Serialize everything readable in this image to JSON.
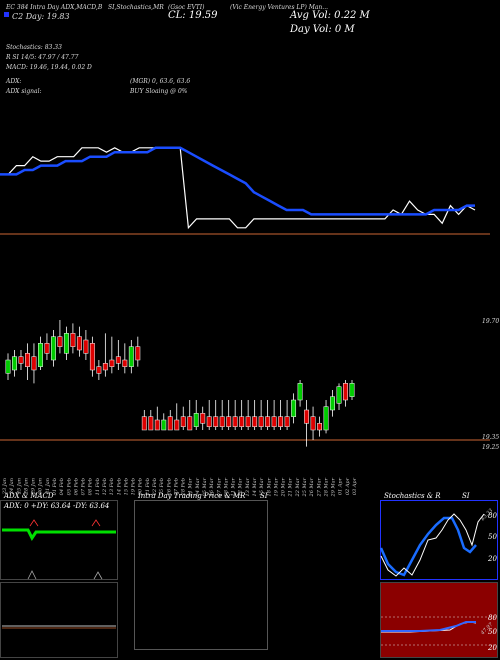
{
  "header": {
    "line1": "EC 384 Intra Day ADX,MACD,B",
    "line1b": "SI,Stochastics,MR",
    "line1c": "(Gsoc EVTI)",
    "line1d": "(Vic Energy Ventures LP) Man...",
    "line2": "C2 Day: 19.83",
    "close": "CL: 19.59",
    "avg_vol": "Avg Vol: 0.22 M",
    "day_vol": "Day Vol: 0   M"
  },
  "indicators": {
    "stochastics": "Stochastics: 83.33",
    "rsi": "R      SI 14/5: 47.97 / 47.77",
    "macd": "MACD: 19.46, 19.44, 0.02  D",
    "adx": "ADX:",
    "adx_vals": "(MGR) 0, 63.6, 63.6",
    "adx_signal": "ADX  signal:",
    "signal": "BUY Sloaing @ 0%"
  },
  "price_labels": {
    "top": "19.70",
    "low1": "19.35",
    "low2": "19.25"
  },
  "chart_data": {
    "type": "line",
    "description_series": [
      {
        "name": "price",
        "color": "#ffffff",
        "values": [
          19.82,
          19.82,
          19.84,
          19.84,
          19.86,
          19.85,
          19.85,
          19.86,
          19.86,
          19.86,
          19.88,
          19.88,
          19.88,
          19.87,
          19.88,
          19.87,
          19.87,
          19.88,
          19.88,
          19.88,
          19.88,
          19.88,
          19.88,
          19.7,
          19.72,
          19.72,
          19.72,
          19.72,
          19.72,
          19.7,
          19.7,
          19.72,
          19.72,
          19.72,
          19.72,
          19.72,
          19.72,
          19.72,
          19.72,
          19.72,
          19.72,
          19.72,
          19.72,
          19.72,
          19.72,
          19.72,
          19.72,
          19.72,
          19.74,
          19.73,
          19.76,
          19.74,
          19.73,
          19.73,
          19.71,
          19.75,
          19.73,
          19.75,
          19.74
        ]
      },
      {
        "name": "moving-average",
        "color": "#1a4dff",
        "values": [
          19.82,
          19.82,
          19.82,
          19.83,
          19.83,
          19.84,
          19.84,
          19.84,
          19.85,
          19.85,
          19.85,
          19.86,
          19.86,
          19.86,
          19.87,
          19.87,
          19.87,
          19.87,
          19.87,
          19.88,
          19.88,
          19.88,
          19.88,
          19.87,
          19.86,
          19.85,
          19.84,
          19.83,
          19.82,
          19.81,
          19.8,
          19.78,
          19.77,
          19.76,
          19.75,
          19.74,
          19.74,
          19.74,
          19.73,
          19.73,
          19.73,
          19.73,
          19.73,
          19.73,
          19.73,
          19.73,
          19.73,
          19.73,
          19.73,
          19.73,
          19.73,
          19.73,
          19.73,
          19.74,
          19.74,
          19.74,
          19.74,
          19.75,
          19.75
        ]
      }
    ],
    "x_labels": [
      "23 Jan",
      "24 Jan",
      "25 Jan",
      "28 Jan",
      "29 Jan",
      "30 Jan",
      "31 Jan",
      "01 Feb",
      "04 Feb",
      "05 Feb",
      "06 Feb",
      "07 Feb",
      "08 Feb",
      "11 Feb",
      "12 Feb",
      "13 Feb",
      "14 Feb",
      "15 Feb",
      "19 Feb",
      "20 Feb",
      "21 Feb",
      "22 Feb",
      "25 Feb",
      "26 Feb",
      "27 Feb",
      "28 Feb",
      "01 Mar",
      "04 Mar",
      "05 Mar",
      "06 Mar",
      "07 Mar",
      "08 Mar",
      "11 Mar",
      "12 Mar",
      "13 Mar",
      "14 Mar",
      "15 Mar",
      "18 Mar",
      "19 Mar",
      "20 Mar",
      "21 Mar",
      "22 Mar",
      "25 Mar",
      "26 Mar",
      "27 Mar",
      "28 Mar",
      "29 Mar",
      "01 Apr",
      "02 Apr",
      "03 Apr"
    ],
    "candles": [
      {
        "dir": "g",
        "o": 19.46,
        "c": 19.5,
        "h": 19.52,
        "l": 19.44
      },
      {
        "dir": "g",
        "o": 19.47,
        "c": 19.51,
        "h": 19.53,
        "l": 19.45
      },
      {
        "dir": "r",
        "o": 19.51,
        "c": 19.49,
        "h": 19.53,
        "l": 19.47
      },
      {
        "dir": "r",
        "o": 19.52,
        "c": 19.48,
        "h": 19.55,
        "l": 19.44
      },
      {
        "dir": "r",
        "o": 19.51,
        "c": 19.47,
        "h": 19.55,
        "l": 19.43
      },
      {
        "dir": "g",
        "o": 19.48,
        "c": 19.55,
        "h": 19.57,
        "l": 19.47
      },
      {
        "dir": "r",
        "o": 19.55,
        "c": 19.52,
        "h": 19.58,
        "l": 19.5
      },
      {
        "dir": "g",
        "o": 19.5,
        "c": 19.57,
        "h": 19.59,
        "l": 19.48
      },
      {
        "dir": "r",
        "o": 19.57,
        "c": 19.54,
        "h": 19.62,
        "l": 19.52
      },
      {
        "dir": "g",
        "o": 19.52,
        "c": 19.58,
        "h": 19.6,
        "l": 19.5
      },
      {
        "dir": "r",
        "o": 19.58,
        "c": 19.54,
        "h": 19.61,
        "l": 19.52
      },
      {
        "dir": "r",
        "o": 19.57,
        "c": 19.53,
        "h": 19.6,
        "l": 19.51
      },
      {
        "dir": "r",
        "o": 19.56,
        "c": 19.52,
        "h": 19.59,
        "l": 19.5
      },
      {
        "dir": "r",
        "o": 19.55,
        "c": 19.47,
        "h": 19.57,
        "l": 19.45
      },
      {
        "dir": "r",
        "o": 19.48,
        "c": 19.46,
        "h": 19.5,
        "l": 19.44
      },
      {
        "dir": "r",
        "o": 19.49,
        "c": 19.47,
        "h": 19.58,
        "l": 19.45
      },
      {
        "dir": "r",
        "o": 19.5,
        "c": 19.48,
        "h": 19.57,
        "l": 19.46
      },
      {
        "dir": "r",
        "o": 19.51,
        "c": 19.49,
        "h": 19.56,
        "l": 19.47
      },
      {
        "dir": "r",
        "o": 19.5,
        "c": 19.48,
        "h": 19.55,
        "l": 19.46
      },
      {
        "dir": "g",
        "o": 19.48,
        "c": 19.54,
        "h": 19.56,
        "l": 19.46
      },
      {
        "dir": "r",
        "o": 19.54,
        "c": 19.5,
        "h": 19.57,
        "l": 19.48
      },
      {
        "dir": "r",
        "o": 19.33,
        "c": 19.29,
        "h": 19.35,
        "l": 19.29
      },
      {
        "dir": "r",
        "o": 19.33,
        "c": 19.29,
        "h": 19.35,
        "l": 19.29
      },
      {
        "dir": "r",
        "o": 19.32,
        "c": 19.29,
        "h": 19.36,
        "l": 19.29
      },
      {
        "dir": "g",
        "o": 19.29,
        "c": 19.32,
        "h": 19.34,
        "l": 19.29
      },
      {
        "dir": "r",
        "o": 19.33,
        "c": 19.29,
        "h": 19.35,
        "l": 19.29
      },
      {
        "dir": "r",
        "o": 19.32,
        "c": 19.29,
        "h": 19.37,
        "l": 19.29
      },
      {
        "dir": "r",
        "o": 19.33,
        "c": 19.3,
        "h": 19.36,
        "l": 19.29
      },
      {
        "dir": "r",
        "o": 19.33,
        "c": 19.29,
        "h": 19.38,
        "l": 19.29
      },
      {
        "dir": "g",
        "o": 19.3,
        "c": 19.34,
        "h": 19.38,
        "l": 19.29
      },
      {
        "dir": "r",
        "o": 19.34,
        "c": 19.31,
        "h": 19.36,
        "l": 19.29
      },
      {
        "dir": "r",
        "o": 19.33,
        "c": 19.3,
        "h": 19.38,
        "l": 19.29
      },
      {
        "dir": "r",
        "o": 19.33,
        "c": 19.3,
        "h": 19.38,
        "l": 19.29
      },
      {
        "dir": "r",
        "o": 19.33,
        "c": 19.3,
        "h": 19.38,
        "l": 19.29
      },
      {
        "dir": "r",
        "o": 19.33,
        "c": 19.3,
        "h": 19.38,
        "l": 19.29
      },
      {
        "dir": "r",
        "o": 19.33,
        "c": 19.3,
        "h": 19.38,
        "l": 19.29
      },
      {
        "dir": "r",
        "o": 19.33,
        "c": 19.3,
        "h": 19.38,
        "l": 19.29
      },
      {
        "dir": "r",
        "o": 19.33,
        "c": 19.3,
        "h": 19.38,
        "l": 19.29
      },
      {
        "dir": "r",
        "o": 19.33,
        "c": 19.3,
        "h": 19.38,
        "l": 19.29
      },
      {
        "dir": "r",
        "o": 19.33,
        "c": 19.3,
        "h": 19.38,
        "l": 19.29
      },
      {
        "dir": "r",
        "o": 19.33,
        "c": 19.3,
        "h": 19.38,
        "l": 19.29
      },
      {
        "dir": "r",
        "o": 19.33,
        "c": 19.3,
        "h": 19.38,
        "l": 19.29
      },
      {
        "dir": "r",
        "o": 19.33,
        "c": 19.3,
        "h": 19.38,
        "l": 19.29
      },
      {
        "dir": "r",
        "o": 19.33,
        "c": 19.3,
        "h": 19.38,
        "l": 19.29
      },
      {
        "dir": "g",
        "o": 19.33,
        "c": 19.38,
        "h": 19.4,
        "l": 19.31
      },
      {
        "dir": "g",
        "o": 19.38,
        "c": 19.43,
        "h": 19.44,
        "l": 19.36
      },
      {
        "dir": "r",
        "o": 19.35,
        "c": 19.31,
        "h": 19.38,
        "l": 19.24
      },
      {
        "dir": "r",
        "o": 19.33,
        "c": 19.29,
        "h": 19.36,
        "l": 19.26
      },
      {
        "dir": "r",
        "o": 19.31,
        "c": 19.29,
        "h": 19.33,
        "l": 19.27
      },
      {
        "dir": "g",
        "o": 19.29,
        "c": 19.36,
        "h": 19.38,
        "l": 19.28
      },
      {
        "dir": "g",
        "o": 19.35,
        "c": 19.39,
        "h": 19.41,
        "l": 19.33
      },
      {
        "dir": "g",
        "o": 19.37,
        "c": 19.42,
        "h": 19.43,
        "l": 19.35
      },
      {
        "dir": "r",
        "o": 19.43,
        "c": 19.38,
        "h": 19.44,
        "l": 19.36
      },
      {
        "dir": "g",
        "o": 19.39,
        "c": 19.43,
        "h": 19.44,
        "l": 19.38
      }
    ]
  },
  "panels": {
    "adx_title": "ADX  & MACD",
    "adx_readout": "ADX: 0  +DY: 63.64  -DY: 63.64",
    "mr_title": "Intra  Day Trading Price  & MR",
    "mr_si": "SI",
    "stoch_title": "Stochastics & R",
    "stoch_si": "SI",
    "stoch_ticks": [
      "80",
      "50",
      "20"
    ],
    "rsi_ticks": [
      "80",
      "50",
      "20"
    ],
    "stoch_current": "83.33",
    "rsi_current": "47.97"
  },
  "colors": {
    "price_line": "#ffffff",
    "ma_line": "#1a4dff",
    "bull": "#00cc00",
    "bear": "#dd0000",
    "adx_line": "#00e000",
    "rsi_panel_bg": "#8b0000",
    "stoch_panel_border": "#2233ff",
    "orange_line": "#cc6633"
  }
}
